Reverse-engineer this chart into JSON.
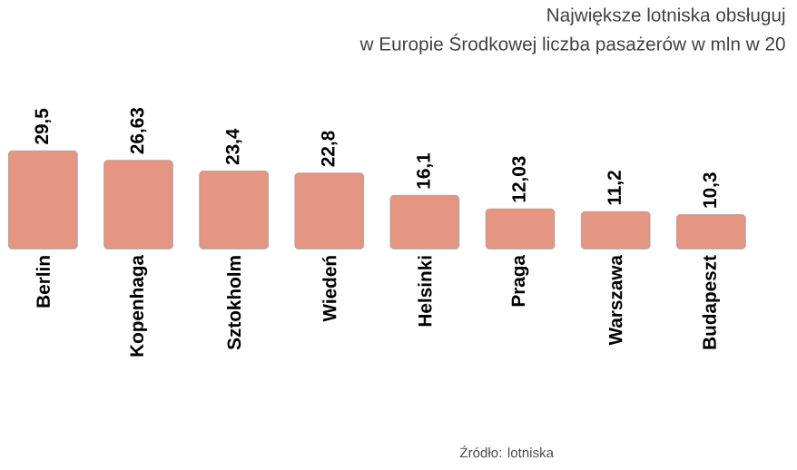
{
  "chart_data": {
    "type": "bar",
    "title": "Największe lotniska obsługuj",
    "subtitle": "w Europie Środkowej liczba pasażerów w mln w 20",
    "categories": [
      "Berlin",
      "Kopenhaga",
      "Sztokholm",
      "Wiedeń",
      "Helsinki",
      "Praga",
      "Warszawa",
      "Budapeszt"
    ],
    "values": [
      29.5,
      26.63,
      23.4,
      22.8,
      16.1,
      12.03,
      11.2,
      10.3
    ],
    "value_labels": [
      "29,5",
      "26,63",
      "23,4",
      "22,8",
      "16,1",
      "12,03",
      "11,2",
      "10,3"
    ],
    "color": "#e59682",
    "annotations": [
      "Źródło: lotniska"
    ]
  }
}
